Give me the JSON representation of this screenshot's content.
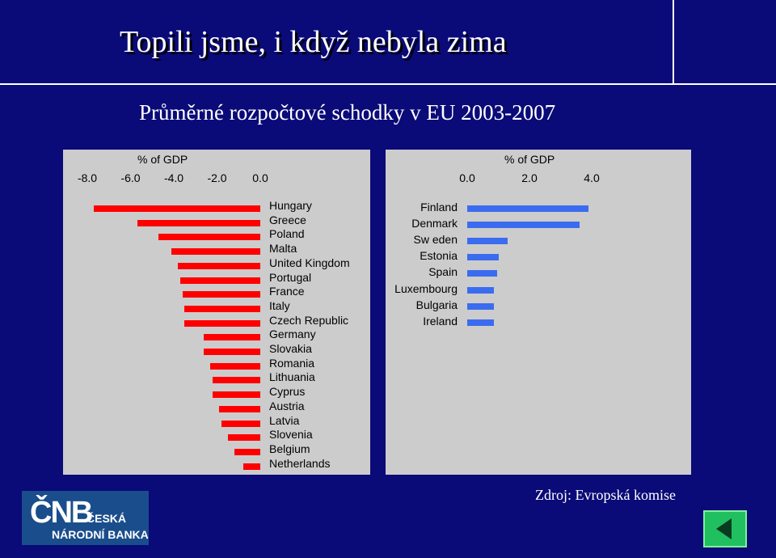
{
  "slide": {
    "title": "Topili jsme, i když nebyla zima",
    "subtitle": "Průměrné rozpočtové schodky v EU 2003-2007",
    "source": "Zdroj: Evropská komise",
    "logo": {
      "mark": "ČNB",
      "line1": "ČESKÁ",
      "line2": "NÁRODNÍ BANKA"
    },
    "nav_button": "previous-slide",
    "colors": {
      "background": "#0a0a78",
      "panel": "#cccccc",
      "deficit_bar": "#ff0000",
      "surplus_bar": "#3b6cf0"
    }
  },
  "chart_data": [
    {
      "type": "bar",
      "orientation": "horizontal",
      "xlabel": "% of GDP",
      "xlim": [
        -8.0,
        0.0
      ],
      "ticks": [
        "-8.0",
        "-6.0",
        "-4.0",
        "-2.0",
        "0.0"
      ],
      "categories": [
        "Hungary",
        "Greece",
        "Poland",
        "Malta",
        "United Kingdom",
        "Portugal",
        "France",
        "Italy",
        "Czech Republic",
        "Germany",
        "Slovakia",
        "Romania",
        "Lithuania",
        "Cyprus",
        "Austria",
        "Latvia",
        "Slovenia",
        "Belgium",
        "Netherlands"
      ],
      "values": [
        -7.7,
        -5.7,
        -4.7,
        -4.1,
        -3.8,
        -3.7,
        -3.6,
        -3.5,
        -3.5,
        -2.6,
        -2.6,
        -2.3,
        -2.2,
        -2.2,
        -1.9,
        -1.8,
        -1.5,
        -1.2,
        -0.8
      ],
      "grid": true
    },
    {
      "type": "bar",
      "orientation": "horizontal",
      "xlabel": "% of GDP",
      "xlim": [
        0.0,
        4.0
      ],
      "ticks": [
        "0.0",
        "2.0",
        "4.0"
      ],
      "categories": [
        "Finland",
        "Denmark",
        "Sw eden",
        "Estonia",
        "Spain",
        "Luxembourg",
        "Bulgaria",
        "Ireland"
      ],
      "values": [
        3.9,
        3.6,
        1.3,
        1.0,
        0.95,
        0.85,
        0.85,
        0.85
      ],
      "grid": true
    }
  ]
}
